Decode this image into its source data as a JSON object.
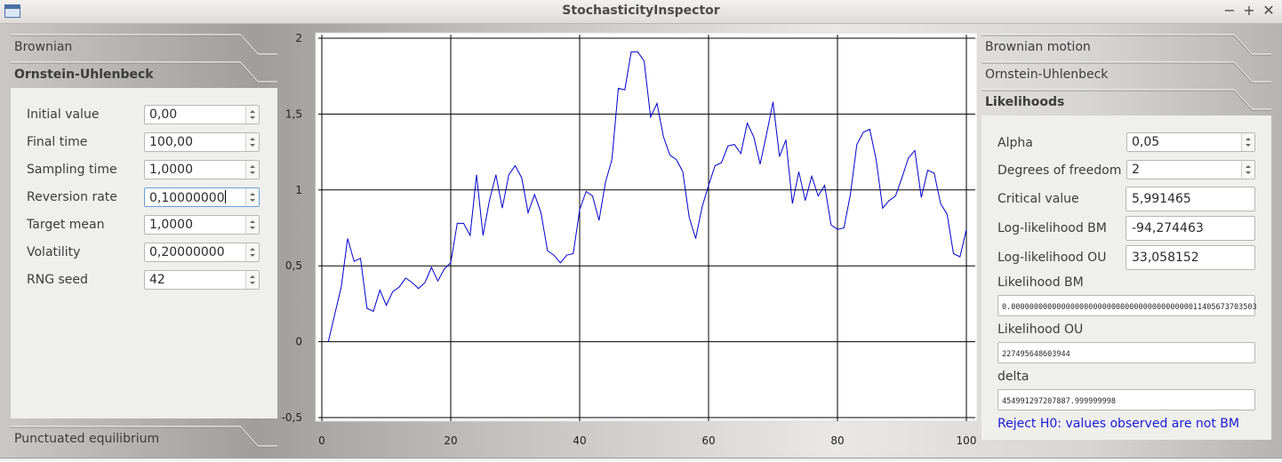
{
  "window": {
    "title": "StochasticityInspector",
    "controls": [
      "−",
      "+",
      "✕"
    ]
  },
  "left_toolbox": {
    "tabs": [
      {
        "label": "Brownian",
        "active": false
      },
      {
        "label": "Ornstein-Uhlenbeck",
        "active": true
      },
      {
        "label": "Punctuated equilibrium",
        "active": false
      }
    ],
    "fields": [
      {
        "label": "Initial value",
        "value": "0,00"
      },
      {
        "label": "Final time",
        "value": "100,00"
      },
      {
        "label": "Sampling time",
        "value": "1,0000"
      },
      {
        "label": "Reversion rate",
        "value": "0,10000000"
      },
      {
        "label": "Target mean",
        "value": "1,0000"
      },
      {
        "label": "Volatility",
        "value": "0,20000000"
      },
      {
        "label": "RNG seed",
        "value": "42"
      }
    ]
  },
  "right_toolbox": {
    "tabs": [
      {
        "label": "Brownian motion",
        "active": false
      },
      {
        "label": "Ornstein-Uhlenbeck",
        "active": false
      },
      {
        "label": "Likelihoods",
        "active": true
      }
    ],
    "alpha": {
      "label": "Alpha",
      "value": "0,05"
    },
    "dof": {
      "label": "Degrees of freedom",
      "value": "2"
    },
    "critical": {
      "label": "Critical value",
      "value": "5,991465"
    },
    "ll_bm": {
      "label": "Log-likelihood BM",
      "value": "-94,274463"
    },
    "ll_ou": {
      "label": "Log-likelihood OU",
      "value": "33,058152"
    },
    "lik_bm": {
      "label": "Likelihood BM",
      "value": "0.000000000000000000000000000000000000000011405673703503"
    },
    "lik_ou": {
      "label": "Likelihood OU",
      "value": "227495648603944"
    },
    "delta": {
      "label": "delta",
      "value": "454991297207887.999999998"
    },
    "verdict": "Reject H0: values observed are not BM",
    "verdict_color": "#1a1ad6"
  },
  "chart_data": {
    "type": "line",
    "xlim": [
      0,
      100
    ],
    "ylim": [
      -0.5,
      2
    ],
    "x_ticks": [
      "0",
      "20",
      "40",
      "60",
      "80",
      "100"
    ],
    "y_ticks": [
      "-0,5",
      "0",
      "0,5",
      "1",
      "1,5",
      "2"
    ],
    "grid": true,
    "line_color": "#0000cc",
    "series": [
      {
        "x": [
          1,
          2,
          3,
          4,
          5,
          6,
          7,
          8,
          9,
          10,
          11,
          12,
          13,
          14,
          15,
          16,
          17,
          18,
          19,
          20,
          21,
          22,
          23,
          24,
          25,
          26,
          27,
          28,
          29,
          30,
          31,
          32,
          33,
          34,
          35,
          36,
          37,
          38,
          39,
          40,
          41,
          42,
          43,
          44,
          45,
          46,
          47,
          48,
          49,
          50,
          51,
          52,
          53,
          54,
          55,
          56,
          57,
          58,
          59,
          60,
          61,
          62,
          63,
          64,
          65,
          66,
          67,
          68,
          69,
          70,
          71,
          72,
          73,
          74,
          75,
          76,
          77,
          78,
          79,
          80,
          81,
          82,
          83,
          84,
          85,
          86,
          87,
          88,
          89,
          90,
          91,
          92,
          93,
          94,
          95,
          96,
          97,
          98,
          99,
          100
        ],
        "y": [
          0.0,
          0.18,
          0.36,
          0.68,
          0.53,
          0.55,
          0.22,
          0.2,
          0.34,
          0.24,
          0.33,
          0.36,
          0.42,
          0.39,
          0.35,
          0.39,
          0.49,
          0.4,
          0.48,
          0.52,
          0.78,
          0.78,
          0.7,
          1.1,
          0.7,
          0.93,
          1.1,
          0.88,
          1.1,
          1.16,
          1.08,
          0.85,
          0.97,
          0.85,
          0.6,
          0.57,
          0.52,
          0.57,
          0.58,
          0.87,
          0.99,
          0.96,
          0.8,
          1.05,
          1.2,
          1.67,
          1.66,
          1.91,
          1.91,
          1.85,
          1.48,
          1.57,
          1.35,
          1.23,
          1.2,
          1.12,
          0.82,
          0.68,
          0.89,
          1.03,
          1.16,
          1.18,
          1.29,
          1.3,
          1.24,
          1.44,
          1.35,
          1.17,
          1.37,
          1.58,
          1.22,
          1.33,
          0.91,
          1.12,
          0.93,
          1.09,
          0.96,
          1.03,
          0.77,
          0.74,
          0.75,
          0.97,
          1.3,
          1.38,
          1.4,
          1.2,
          0.88,
          0.93,
          0.96,
          1.08,
          1.21,
          1.26,
          0.95,
          1.13,
          1.11,
          0.91,
          0.84,
          0.58,
          0.56,
          0.74
        ]
      }
    ]
  }
}
